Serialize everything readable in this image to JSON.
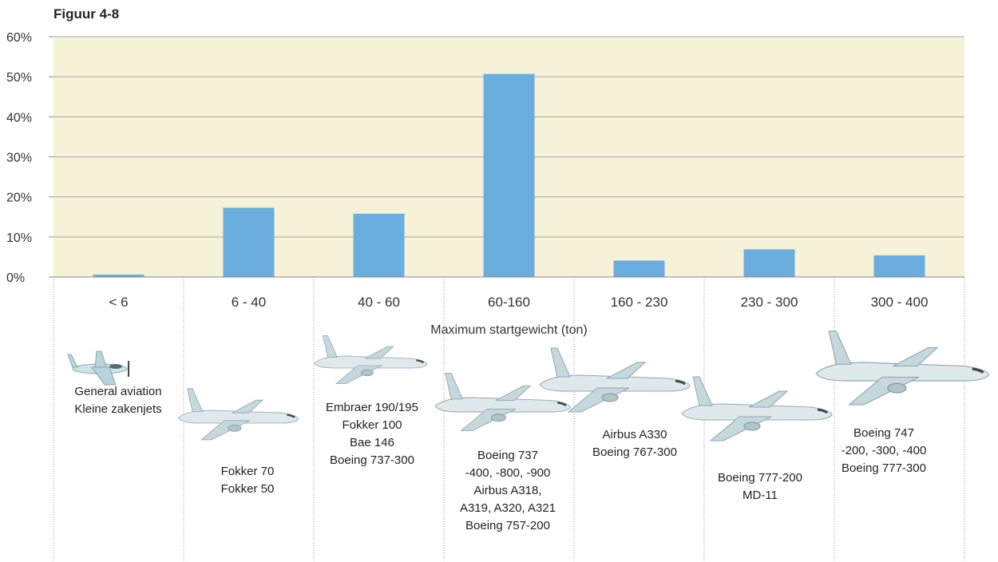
{
  "chart_data": {
    "type": "bar",
    "title": "Figuur 4-8",
    "xlabel": "Maximum startgewicht (ton)",
    "ylabel": "",
    "ylim": [
      0,
      60
    ],
    "yticks": [
      "0%",
      "10%",
      "20%",
      "30%",
      "40%",
      "50%",
      "60%"
    ],
    "categories": [
      "< 6",
      "6 - 40",
      "40 - 60",
      "60-160",
      "160 - 230",
      "230 - 300",
      "300 - 400"
    ],
    "values": [
      0.6,
      17.3,
      15.8,
      50.7,
      4.1,
      6.9,
      5.4
    ],
    "grid": true,
    "colors": {
      "bar": "#6aaee0",
      "plot_bg": "#f5f2d8",
      "grid": "#a9a9a9"
    }
  },
  "aircraft_groups": [
    {
      "category": "< 6",
      "lines": [
        "General aviation",
        "Kleine zakenjets"
      ],
      "icon": "small-prop-plane-icon"
    },
    {
      "category": "6 - 40",
      "lines": [
        "Fokker 70",
        "Fokker 50"
      ],
      "icon": "regional-jet-icon"
    },
    {
      "category": "40 - 60",
      "lines": [
        "Embraer 190/195",
        "Fokker 100",
        "Bae 146",
        "Boeing 737-300"
      ],
      "icon": "narrowbody-jet-icon"
    },
    {
      "category": "60-160",
      "lines": [
        "Boeing 737",
        "-400, -800, -900",
        "Airbus A318,",
        "A319, A320, A321",
        "Boeing 757-200"
      ],
      "icon": "narrowbody-jet-icon"
    },
    {
      "category": "160 - 230",
      "lines": [
        "Airbus A330",
        "Boeing 767-300"
      ],
      "icon": "widebody-jet-icon"
    },
    {
      "category": "230 - 300",
      "lines": [
        "Boeing 777-200",
        "MD-11"
      ],
      "icon": "widebody-jet-icon"
    },
    {
      "category": "300 - 400",
      "lines": [
        "Boeing 747",
        "-200, -300, -400",
        "Boeing 777-300"
      ],
      "icon": "jumbo-jet-icon"
    }
  ]
}
